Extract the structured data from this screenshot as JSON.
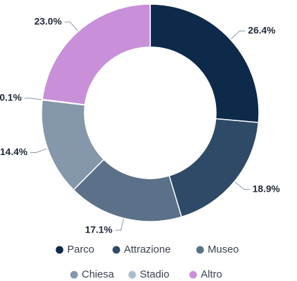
{
  "chart_data": {
    "type": "donut",
    "categories": [
      "Parco",
      "Attrazione",
      "Museo",
      "Chiesa",
      "Stadio",
      "Altro"
    ],
    "values": [
      26.4,
      18.9,
      17.1,
      14.4,
      0.1,
      23.0
    ],
    "value_labels": [
      "26.4%",
      "18.9%",
      "17.1%",
      "14.4%",
      "0.1%",
      "23.0%"
    ],
    "colors": [
      "#0e2a4a",
      "#2f4a66",
      "#5b7189",
      "#8597aa",
      "#a9bdcf",
      "#c98fd9"
    ],
    "legend": "bottom"
  }
}
